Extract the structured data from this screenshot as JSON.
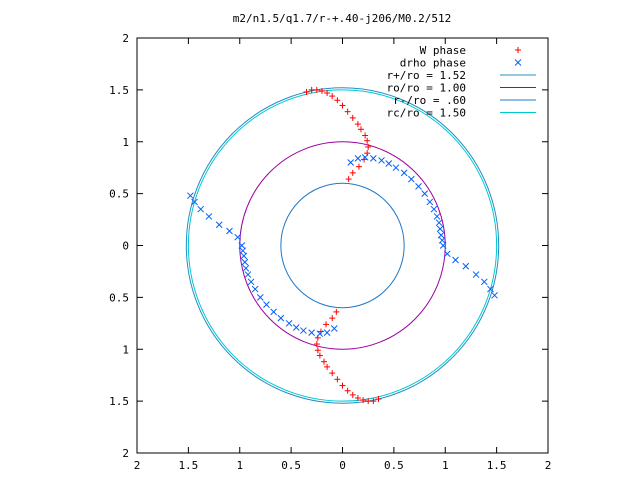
{
  "chart_data": {
    "type": "scatter",
    "title": "m2/n1.5/q1.7/r-+.40-j206/M0.2/512",
    "xlabel": "",
    "ylabel": "",
    "xlim": [
      -2,
      2
    ],
    "ylim": [
      -2,
      2
    ],
    "x_ticks": [
      -2,
      -1.5,
      -1,
      -0.5,
      0,
      0.5,
      1,
      1.5,
      2
    ],
    "y_ticks": [
      -2,
      -1.5,
      -1,
      -0.5,
      0,
      0.5,
      1,
      1.5,
      2
    ],
    "x_tick_labels": [
      "2",
      "1.5",
      "1",
      "0.5",
      "0",
      "0.5",
      "1",
      "1.5",
      "2"
    ],
    "y_tick_labels": [
      "2",
      "1.5",
      "1",
      "0.5",
      "0",
      "0.5",
      "1",
      "1.5",
      "2"
    ],
    "grid": false,
    "legend_position": "top-right",
    "series": [
      {
        "name": "W phase",
        "marker": "plus",
        "color": "#ff0000",
        "x": [
          -0.35,
          -0.3,
          -0.25,
          -0.2,
          -0.15,
          -0.1,
          -0.05,
          0.0,
          0.05,
          0.1,
          0.15,
          0.18,
          0.22,
          0.24,
          0.25,
          0.24,
          0.21,
          0.16,
          0.1,
          0.06,
          0.35,
          0.3,
          0.25,
          0.2,
          0.15,
          0.1,
          0.05,
          0.0,
          -0.05,
          -0.1,
          -0.15,
          -0.18,
          -0.22,
          -0.24,
          -0.25,
          -0.24,
          -0.21,
          -0.16,
          -0.1,
          -0.06
        ],
        "y": [
          1.48,
          1.5,
          1.5,
          1.49,
          1.47,
          1.44,
          1.4,
          1.35,
          1.29,
          1.23,
          1.17,
          1.12,
          1.06,
          1.01,
          0.95,
          0.89,
          0.83,
          0.76,
          0.7,
          0.64,
          -1.48,
          -1.5,
          -1.5,
          -1.49,
          -1.47,
          -1.44,
          -1.4,
          -1.35,
          -1.29,
          -1.23,
          -1.17,
          -1.12,
          -1.06,
          -1.01,
          -0.95,
          -0.89,
          -0.83,
          -0.76,
          -0.7,
          -0.64
        ]
      },
      {
        "name": "drho phase",
        "marker": "cross",
        "color": "#0060ff",
        "x": [
          -1.48,
          -1.44,
          -1.38,
          -1.3,
          -1.2,
          -1.1,
          -1.02,
          -0.98,
          -0.97,
          -0.96,
          -0.95,
          -0.94,
          -0.92,
          -0.89,
          -0.85,
          -0.8,
          -0.74,
          -0.67,
          -0.6,
          -0.52,
          -0.45,
          -0.38,
          -0.3,
          -0.22,
          -0.15,
          -0.08,
          1.48,
          1.44,
          1.38,
          1.3,
          1.2,
          1.1,
          1.02,
          0.98,
          0.97,
          0.96,
          0.95,
          0.94,
          0.92,
          0.89,
          0.85,
          0.8,
          0.74,
          0.67,
          0.6,
          0.52,
          0.45,
          0.38,
          0.3,
          0.22,
          0.15,
          0.08
        ],
        "y": [
          0.48,
          0.42,
          0.35,
          0.28,
          0.2,
          0.14,
          0.08,
          0.0,
          -0.05,
          -0.1,
          -0.16,
          -0.22,
          -0.28,
          -0.35,
          -0.42,
          -0.5,
          -0.57,
          -0.64,
          -0.7,
          -0.75,
          -0.79,
          -0.82,
          -0.84,
          -0.85,
          -0.84,
          -0.8,
          -0.48,
          -0.42,
          -0.35,
          -0.28,
          -0.2,
          -0.14,
          -0.08,
          0.0,
          0.05,
          0.1,
          0.16,
          0.22,
          0.28,
          0.35,
          0.42,
          0.5,
          0.57,
          0.64,
          0.7,
          0.75,
          0.79,
          0.82,
          0.84,
          0.85,
          0.84,
          0.8
        ]
      },
      {
        "name": "r+/ro = 1.52",
        "type": "circle",
        "r": 1.52,
        "color": "#1e90c8"
      },
      {
        "name": "ro/ro = 1.00",
        "type": "circle",
        "r": 1.0,
        "color": "#a000a0"
      },
      {
        "name": "r-/ro = .60",
        "type": "circle",
        "r": 0.6,
        "color": "#1e78c8"
      },
      {
        "name": "rc/ro = 1.50",
        "type": "circle",
        "r": 1.5,
        "color": "#00c8d0"
      }
    ]
  }
}
